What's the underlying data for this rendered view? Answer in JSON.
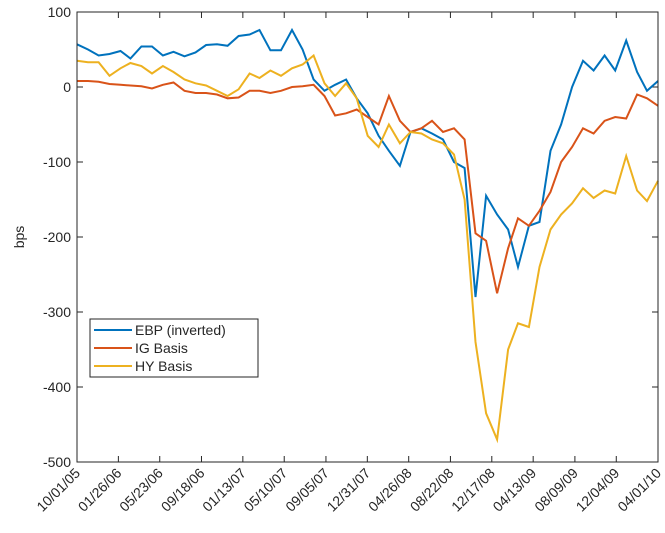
{
  "chart_data": {
    "type": "line",
    "y_label": "bps",
    "x": [
      "2005-10-01",
      "2005-11-01",
      "2005-12-01",
      "2006-01-01",
      "2006-02-01",
      "2006-03-01",
      "2006-04-01",
      "2006-05-01",
      "2006-06-01",
      "2006-07-01",
      "2006-08-01",
      "2006-09-01",
      "2006-10-01",
      "2006-11-01",
      "2006-12-01",
      "2007-01-01",
      "2007-02-01",
      "2007-03-01",
      "2007-04-01",
      "2007-05-01",
      "2007-06-01",
      "2007-07-01",
      "2007-08-01",
      "2007-09-01",
      "2007-10-01",
      "2007-11-01",
      "2007-12-01",
      "2008-01-01",
      "2008-02-01",
      "2008-03-01",
      "2008-04-01",
      "2008-05-01",
      "2008-06-01",
      "2008-07-01",
      "2008-08-01",
      "2008-09-01",
      "2008-10-01",
      "2008-11-01",
      "2008-12-01",
      "2009-01-01",
      "2009-02-01",
      "2009-03-01",
      "2009-04-01",
      "2009-05-01",
      "2009-06-01",
      "2009-07-01",
      "2009-08-01",
      "2009-09-01",
      "2009-10-01",
      "2009-11-01",
      "2009-12-01",
      "2010-01-01",
      "2010-02-01",
      "2010-03-01",
      "2010-04-01"
    ],
    "series": [
      {
        "name": "EBP (inverted)",
        "color": "#0072bd",
        "values": [
          57,
          50,
          42,
          44,
          48,
          38,
          54,
          54,
          42,
          47,
          41,
          46,
          56,
          57,
          55,
          68,
          70,
          76,
          49,
          49,
          76,
          50,
          10,
          -5,
          3,
          10,
          -15,
          -35,
          -65,
          -85,
          -105,
          -60,
          -55,
          -62,
          -70,
          -100,
          -108,
          -280,
          -145,
          -170,
          -190,
          -240,
          -185,
          -180,
          -85,
          -50,
          0,
          35,
          22,
          42,
          22,
          62,
          20,
          -5,
          8
        ]
      },
      {
        "name": "IG Basis",
        "color": "#d95319",
        "values": [
          8,
          8,
          7,
          4,
          3,
          2,
          1,
          -2,
          3,
          6,
          -5,
          -8,
          -8,
          -10,
          -15,
          -14,
          -5,
          -5,
          -8,
          -5,
          0,
          1,
          3,
          -12,
          -38,
          -35,
          -30,
          -40,
          -50,
          -12,
          -45,
          -60,
          -55,
          -45,
          -60,
          -55,
          -70,
          -195,
          -205,
          -275,
          -215,
          -175,
          -185,
          -165,
          -140,
          -100,
          -80,
          -55,
          -62,
          -45,
          -40,
          -42,
          -10,
          -15,
          -25
        ]
      },
      {
        "name": "HY Basis",
        "color": "#edb120",
        "values": [
          35,
          33,
          33,
          15,
          25,
          32,
          28,
          18,
          28,
          20,
          10,
          5,
          2,
          -5,
          -12,
          -3,
          18,
          12,
          22,
          15,
          25,
          30,
          42,
          5,
          -12,
          5,
          -15,
          -65,
          -80,
          -50,
          -75,
          -60,
          -62,
          -70,
          -75,
          -90,
          -150,
          -340,
          -435,
          -470,
          -350,
          -315,
          -320,
          -240,
          -190,
          -170,
          -155,
          -135,
          -148,
          -138,
          -142,
          -92,
          -138,
          -152,
          -125
        ]
      }
    ],
    "xlim": [
      "2005-10-01",
      "2010-04-01"
    ],
    "xticks": [
      {
        "value": "2005-10-01",
        "label": "10/01/05"
      },
      {
        "value": "2006-01-26",
        "label": "01/26/06"
      },
      {
        "value": "2006-05-23",
        "label": "05/23/06"
      },
      {
        "value": "2006-09-18",
        "label": "09/18/06"
      },
      {
        "value": "2007-01-13",
        "label": "01/13/07"
      },
      {
        "value": "2007-05-10",
        "label": "05/10/07"
      },
      {
        "value": "2007-09-05",
        "label": "09/05/07"
      },
      {
        "value": "2007-12-31",
        "label": "12/31/07"
      },
      {
        "value": "2008-04-26",
        "label": "04/26/08"
      },
      {
        "value": "2008-08-22",
        "label": "08/22/08"
      },
      {
        "value": "2008-12-17",
        "label": "12/17/08"
      },
      {
        "value": "2009-04-13",
        "label": "04/13/09"
      },
      {
        "value": "2009-08-09",
        "label": "08/09/09"
      },
      {
        "value": "2009-12-04",
        "label": "12/04/09"
      },
      {
        "value": "2010-04-01",
        "label": "04/01/10"
      }
    ],
    "ylim": [
      -500,
      100
    ],
    "yticks": [
      -500,
      -400,
      -300,
      -200,
      -100,
      0,
      100
    ],
    "grid": false,
    "legend": "lower left"
  }
}
